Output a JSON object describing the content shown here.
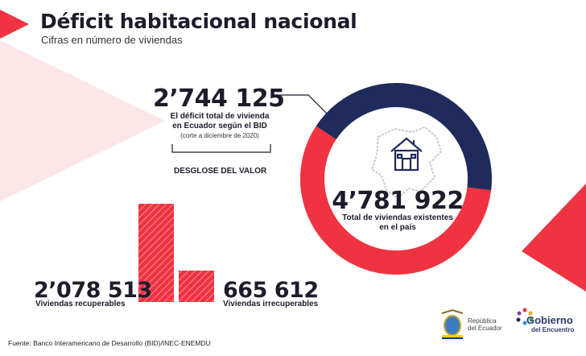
{
  "title": "Déficit habitacional nacional",
  "subtitle": "Cifras en número de viviendas",
  "colors": {
    "red": "#ef3340",
    "navy": "#1f2b5c",
    "text": "#1c1c2b",
    "pink": "#fde6e8"
  },
  "deficit": {
    "value": "2’744 125",
    "line1": "El déficit total de vivienda",
    "line2": "en Ecuador según el BID",
    "cutoff": "(corte a diciembre de 2020)",
    "breakdown_label": "DESGLOSE DEL VALOR"
  },
  "total": {
    "value": "4’781 922",
    "line1": "Total de viviendas existentes",
    "line2": "en el país"
  },
  "recoverable": {
    "value": "2’078 513",
    "label": "Viviendas recuperables"
  },
  "irrecoverable": {
    "value": "665 612",
    "label": "Viviendas irrecuperables"
  },
  "source": "Fuente: Banco Interamericano de Desarrollo (BID)/INEC-ENEMDU",
  "logos": {
    "republica_line1": "República",
    "republica_line2": "del Ecuador",
    "gobierno": "Gobierno",
    "gobierno_sub": "del Encuentro"
  },
  "icons": {
    "house": "house-icon",
    "map": "ecuador-map-icon"
  },
  "chart_data": [
    {
      "type": "pie",
      "series": [
        {
          "name": "",
          "values": [
            2744125,
            2037797
          ]
        }
      ],
      "colors": [
        "#ef3340",
        "#1f2b5c"
      ],
      "total": 4781922,
      "center_label": "4’781 922"
    },
    {
      "type": "bar",
      "categories": [
        "Viviendas recuperables",
        "Viviendas irrecuperables"
      ],
      "values": [
        2078513,
        665612
      ]
    }
  ]
}
